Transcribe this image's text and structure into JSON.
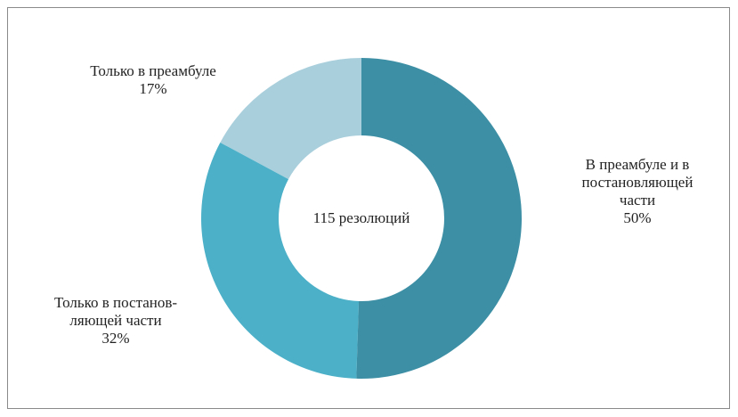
{
  "chart_data": {
    "type": "donut",
    "center_label": "115 резолюций",
    "categories": [
      "В преамбуле и в\nпостановляющей\nчасти",
      "Только в постанов-\nляющей части",
      "Только в преамбуле"
    ],
    "values": [
      50,
      32,
      17
    ],
    "value_labels": [
      "50%",
      "32%",
      "17%"
    ],
    "colors": [
      "#3d8fa5",
      "#4bb0c8",
      "#a9cfdc"
    ]
  }
}
